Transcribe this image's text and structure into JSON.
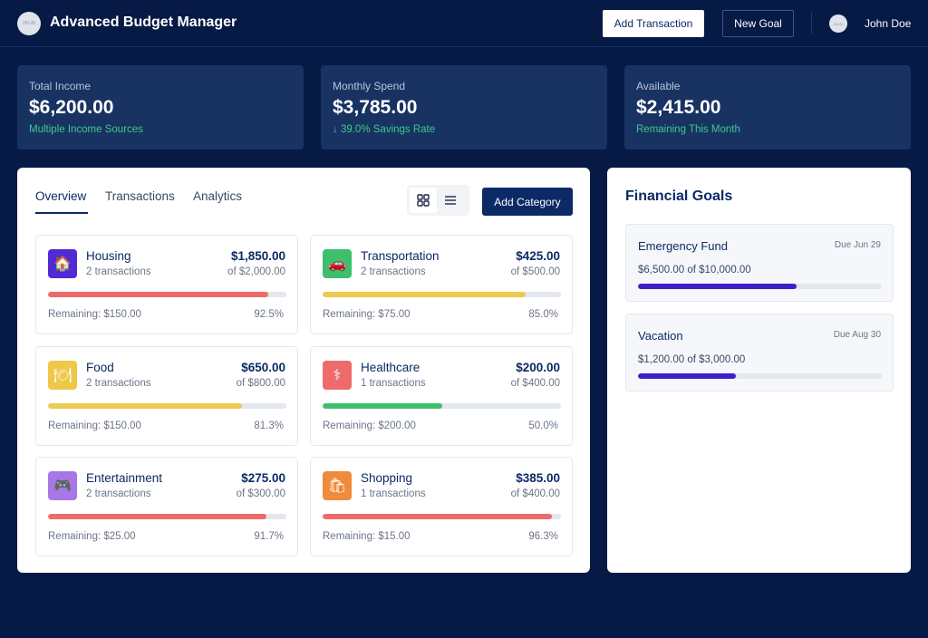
{
  "header": {
    "logo_text": "28×28",
    "title": "Advanced Budget Manager",
    "add_transaction": "Add Transaction",
    "new_goal": "New Goal",
    "avatar_text": "20×20",
    "username": "John Doe"
  },
  "stats": [
    {
      "label": "Total Income",
      "value": "$6,200.00",
      "sub": "Multiple Income Sources"
    },
    {
      "label": "Monthly Spend",
      "value": "$3,785.00",
      "sub": "↓ 39.0% Savings Rate"
    },
    {
      "label": "Available",
      "value": "$2,415.00",
      "sub": "Remaining This Month"
    }
  ],
  "tabs": [
    "Overview",
    "Transactions",
    "Analytics"
  ],
  "view_toggle": {
    "grid_icon": "grid-icon",
    "list_icon": "list-icon"
  },
  "add_category": "Add Category",
  "categories": [
    {
      "name": "Housing",
      "count": "2 transactions",
      "amount": "$1,850.00",
      "budget": "of $2,000.00",
      "remaining": "Remaining: $150.00",
      "pct": "92.5%",
      "progress": 0.925,
      "icon": "house-icon",
      "glyph": "🏠",
      "icon_color": "#4f2bd6",
      "bar_color": "#ef6b6b"
    },
    {
      "name": "Transportation",
      "count": "2 transactions",
      "amount": "$425.00",
      "budget": "of $500.00",
      "remaining": "Remaining: $75.00",
      "pct": "85.0%",
      "progress": 0.85,
      "icon": "car-icon",
      "glyph": "🚗",
      "icon_color": "#3fbf6e",
      "bar_color": "#eccb4e"
    },
    {
      "name": "Food",
      "count": "2 transactions",
      "amount": "$650.00",
      "budget": "of $800.00",
      "remaining": "Remaining: $150.00",
      "pct": "81.3%",
      "progress": 0.813,
      "icon": "plate-icon",
      "glyph": "🍽",
      "icon_color": "#efc84a",
      "bar_color": "#eccb4e"
    },
    {
      "name": "Healthcare",
      "count": "1 transactions",
      "amount": "$200.00",
      "budget": "of $400.00",
      "remaining": "Remaining: $200.00",
      "pct": "50.0%",
      "progress": 0.5,
      "icon": "medical-icon",
      "glyph": "⚕",
      "icon_color": "#ef6b6b",
      "bar_color": "#3fbf6e"
    },
    {
      "name": "Entertainment",
      "count": "2 transactions",
      "amount": "$275.00",
      "budget": "of $300.00",
      "remaining": "Remaining: $25.00",
      "pct": "91.7%",
      "progress": 0.917,
      "icon": "gamepad-icon",
      "glyph": "🎮",
      "icon_color": "#a877e6",
      "bar_color": "#ef6b6b"
    },
    {
      "name": "Shopping",
      "count": "1 transactions",
      "amount": "$385.00",
      "budget": "of $400.00",
      "remaining": "Remaining: $15.00",
      "pct": "96.3%",
      "progress": 0.963,
      "icon": "gift-icon",
      "glyph": "🛍",
      "icon_color": "#f08a3c",
      "bar_color": "#ef6b6b"
    }
  ],
  "goals": {
    "title": "Financial Goals",
    "items": [
      {
        "name": "Emergency Fund",
        "due": "Due Jun 29",
        "progress_text": "$6,500.00 of $10,000.00",
        "progress": 0.65
      },
      {
        "name": "Vacation",
        "due": "Due Aug 30",
        "progress_text": "$1,200.00 of $3,000.00",
        "progress": 0.4
      }
    ]
  }
}
